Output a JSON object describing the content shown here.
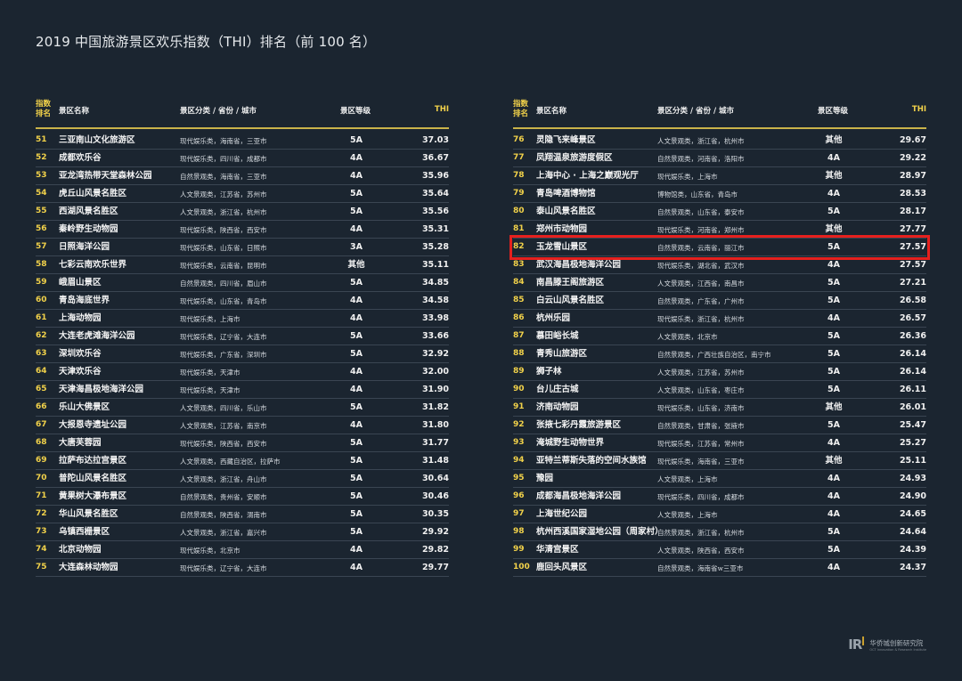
{
  "title": "2019 中国旅游景区欢乐指数（THI）排名（前 100 名）",
  "headers": {
    "rank_line1": "指数",
    "rank_line2": "排名",
    "name": "景区名称",
    "category": "景区分类 / 省份 / 城市",
    "grade": "景区等级",
    "thi": "THI"
  },
  "left_rows": [
    {
      "rank": "51",
      "name": "三亚南山文化旅游区",
      "category": "现代娱乐类，海南省，三亚市",
      "grade": "5A",
      "thi": "37.03"
    },
    {
      "rank": "52",
      "name": "成都欢乐谷",
      "category": "现代娱乐类，四川省，成都市",
      "grade": "4A",
      "thi": "36.67"
    },
    {
      "rank": "53",
      "name": "亚龙湾热带天堂森林公园",
      "category": "自然景观类，海南省，三亚市",
      "grade": "4A",
      "thi": "35.96"
    },
    {
      "rank": "54",
      "name": "虎丘山风景名胜区",
      "category": "人文景观类，江苏省，苏州市",
      "grade": "5A",
      "thi": "35.64"
    },
    {
      "rank": "55",
      "name": "西湖风景名胜区",
      "category": "人文景观类，浙江省，杭州市",
      "grade": "5A",
      "thi": "35.56"
    },
    {
      "rank": "56",
      "name": "秦岭野生动物园",
      "category": "现代娱乐类，陕西省，西安市",
      "grade": "4A",
      "thi": "35.31"
    },
    {
      "rank": "57",
      "name": "日照海洋公园",
      "category": "现代娱乐类，山东省，日照市",
      "grade": "3A",
      "thi": "35.28"
    },
    {
      "rank": "58",
      "name": "七彩云南欢乐世界",
      "category": "现代娱乐类，云南省，昆明市",
      "grade": "其他",
      "thi": "35.11"
    },
    {
      "rank": "59",
      "name": "峨眉山景区",
      "category": "自然景观类，四川省，眉山市",
      "grade": "5A",
      "thi": "34.85"
    },
    {
      "rank": "60",
      "name": "青岛海底世界",
      "category": "现代娱乐类，山东省，青岛市",
      "grade": "4A",
      "thi": "34.58"
    },
    {
      "rank": "61",
      "name": "上海动物园",
      "category": "现代娱乐类，上海市",
      "grade": "4A",
      "thi": "33.98"
    },
    {
      "rank": "62",
      "name": "大连老虎滩海洋公园",
      "category": "现代娱乐类，辽宁省，大连市",
      "grade": "5A",
      "thi": "33.66"
    },
    {
      "rank": "63",
      "name": "深圳欢乐谷",
      "category": "现代娱乐类，广东省，深圳市",
      "grade": "5A",
      "thi": "32.92"
    },
    {
      "rank": "64",
      "name": "天津欢乐谷",
      "category": "现代娱乐类，天津市",
      "grade": "4A",
      "thi": "32.00"
    },
    {
      "rank": "65",
      "name": "天津海昌极地海洋公园",
      "category": "现代娱乐类，天津市",
      "grade": "4A",
      "thi": "31.90"
    },
    {
      "rank": "66",
      "name": "乐山大佛景区",
      "category": "人文景观类，四川省，乐山市",
      "grade": "5A",
      "thi": "31.82"
    },
    {
      "rank": "67",
      "name": "大报恩寺遗址公园",
      "category": "人文景观类，江苏省，南京市",
      "grade": "4A",
      "thi": "31.80"
    },
    {
      "rank": "68",
      "name": "大唐芙蓉园",
      "category": "现代娱乐类，陕西省，西安市",
      "grade": "5A",
      "thi": "31.77"
    },
    {
      "rank": "69",
      "name": "拉萨布达拉宫景区",
      "category": "人文景观类，西藏自治区，拉萨市",
      "grade": "5A",
      "thi": "31.48"
    },
    {
      "rank": "70",
      "name": "普陀山风景名胜区",
      "category": "人文景观类，浙江省，舟山市",
      "grade": "5A",
      "thi": "30.64"
    },
    {
      "rank": "71",
      "name": "黄果树大瀑布景区",
      "category": "自然景观类，贵州省，安顺市",
      "grade": "5A",
      "thi": "30.46"
    },
    {
      "rank": "72",
      "name": "华山风景名胜区",
      "category": "自然景观类，陕西省，渭南市",
      "grade": "5A",
      "thi": "30.35"
    },
    {
      "rank": "73",
      "name": "乌镇西栅景区",
      "category": "人文景观类，浙江省，嘉兴市",
      "grade": "5A",
      "thi": "29.92"
    },
    {
      "rank": "74",
      "name": "北京动物园",
      "category": "现代娱乐类，北京市",
      "grade": "4A",
      "thi": "29.82"
    },
    {
      "rank": "75",
      "name": "大连森林动物园",
      "category": "现代娱乐类，辽宁省，大连市",
      "grade": "4A",
      "thi": "29.77"
    }
  ],
  "right_rows": [
    {
      "rank": "76",
      "name": "灵隐飞来峰景区",
      "category": "人文景观类，浙江省，杭州市",
      "grade": "其他",
      "thi": "29.67"
    },
    {
      "rank": "77",
      "name": "凤翔温泉旅游度假区",
      "category": "自然景观类，河南省，洛阳市",
      "grade": "4A",
      "thi": "29.22"
    },
    {
      "rank": "78",
      "name": "上海中心 · 上海之巅观光厅",
      "category": "现代娱乐类，上海市",
      "grade": "其他",
      "thi": "28.97"
    },
    {
      "rank": "79",
      "name": "青岛啤酒博物馆",
      "category": "博物馆类，山东省，青岛市",
      "grade": "4A",
      "thi": "28.53"
    },
    {
      "rank": "80",
      "name": "泰山风景名胜区",
      "category": "自然景观类，山东省，泰安市",
      "grade": "5A",
      "thi": "28.17"
    },
    {
      "rank": "81",
      "name": "郑州市动物园",
      "category": "现代娱乐类，河南省，郑州市",
      "grade": "其他",
      "thi": "27.77"
    },
    {
      "rank": "82",
      "name": "玉龙雪山景区",
      "category": "自然景观类，云南省，丽江市",
      "grade": "5A",
      "thi": "27.57"
    },
    {
      "rank": "83",
      "name": "武汉海昌极地海洋公园",
      "category": "现代娱乐类，湖北省，武汉市",
      "grade": "4A",
      "thi": "27.57"
    },
    {
      "rank": "84",
      "name": "南昌滕王阁旅游区",
      "category": "人文景观类，江西省，南昌市",
      "grade": "5A",
      "thi": "27.21"
    },
    {
      "rank": "85",
      "name": "白云山风景名胜区",
      "category": "自然景观类，广东省，广州市",
      "grade": "5A",
      "thi": "26.58"
    },
    {
      "rank": "86",
      "name": "杭州乐园",
      "category": "现代娱乐类，浙江省，杭州市",
      "grade": "4A",
      "thi": "26.57"
    },
    {
      "rank": "87",
      "name": "慕田峪长城",
      "category": "人文景观类，北京市",
      "grade": "5A",
      "thi": "26.36"
    },
    {
      "rank": "88",
      "name": "青秀山旅游区",
      "category": "自然景观类，广西壮族自治区，南宁市",
      "grade": "5A",
      "thi": "26.14"
    },
    {
      "rank": "89",
      "name": "狮子林",
      "category": "人文景观类，江苏省，苏州市",
      "grade": "5A",
      "thi": "26.14"
    },
    {
      "rank": "90",
      "name": "台儿庄古城",
      "category": "人文景观类，山东省，枣庄市",
      "grade": "5A",
      "thi": "26.11"
    },
    {
      "rank": "91",
      "name": "济南动物园",
      "category": "现代娱乐类，山东省，济南市",
      "grade": "其他",
      "thi": "26.01"
    },
    {
      "rank": "92",
      "name": "张掖七彩丹霞旅游景区",
      "category": "自然景观类，甘肃省，张掖市",
      "grade": "5A",
      "thi": "25.47"
    },
    {
      "rank": "93",
      "name": "淹城野生动物世界",
      "category": "现代娱乐类，江苏省，常州市",
      "grade": "4A",
      "thi": "25.27"
    },
    {
      "rank": "94",
      "name": "亚特兰蒂斯失落的空间水族馆",
      "category": "现代娱乐类，海南省，三亚市",
      "grade": "其他",
      "thi": "25.11"
    },
    {
      "rank": "95",
      "name": "豫园",
      "category": "人文景观类，上海市",
      "grade": "4A",
      "thi": "24.93"
    },
    {
      "rank": "96",
      "name": "成都海昌极地海洋公园",
      "category": "现代娱乐类，四川省，成都市",
      "grade": "4A",
      "thi": "24.90"
    },
    {
      "rank": "97",
      "name": "上海世纪公园",
      "category": "人文景观类，上海市",
      "grade": "4A",
      "thi": "24.65"
    },
    {
      "rank": "98",
      "name": "杭州西溪国家湿地公园（周家村）",
      "category": "自然景观类，浙江省，杭州市",
      "grade": "5A",
      "thi": "24.64"
    },
    {
      "rank": "99",
      "name": "华清宫景区",
      "category": "人文景观类，陕西省，西安市",
      "grade": "5A",
      "thi": "24.39"
    },
    {
      "rank": "100",
      "name": "鹿回头风景区",
      "category": "自然景观类，海南省w三亚市",
      "grade": "4A",
      "thi": "24.37"
    }
  ],
  "highlight_rank": "82",
  "highlight_color": "#e5201e",
  "accent_color": "#f2d24a",
  "logo": {
    "mark": "IR",
    "name_cn": "华侨城创新研究院",
    "name_en": "OCT Innovation & Research Institute"
  }
}
